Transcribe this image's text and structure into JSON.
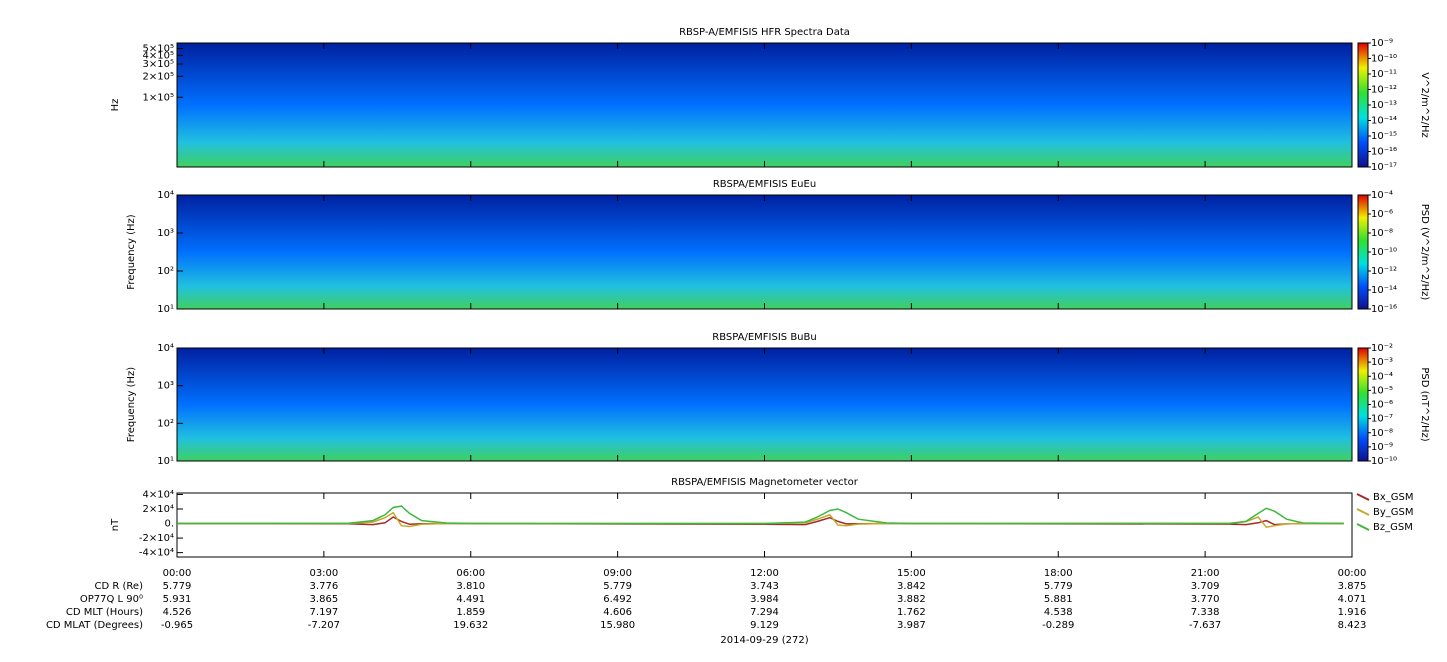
{
  "chart_data": [
    {
      "type": "spectrogram",
      "title": "RBSP-A/EMFISIS  HFR Spectra Data",
      "ylabel": "Hz",
      "log_y": true,
      "ylim": [
        10000,
        600000
      ],
      "yticks": [
        {
          "value": 500000,
          "label": "5×10⁵"
        },
        {
          "value": 400000,
          "label": "4×10⁵"
        },
        {
          "value": 300000,
          "label": "3×10⁵"
        },
        {
          "value": 200000,
          "label": "2×10⁵"
        },
        {
          "value": 100000,
          "label": "1×10⁵"
        }
      ],
      "colorbar_label": "V^2/m^2/Hz",
      "clim": [
        1e-17,
        1e-09
      ],
      "cticks": [
        {
          "value": 1e-09,
          "label": "10⁻⁹"
        },
        {
          "value": 1e-10,
          "label": "10⁻¹⁰"
        },
        {
          "value": 1e-11,
          "label": "10⁻¹¹"
        },
        {
          "value": 1e-12,
          "label": "10⁻¹²"
        },
        {
          "value": 1e-13,
          "label": "10⁻¹³"
        },
        {
          "value": 1e-14,
          "label": "10⁻¹⁴"
        },
        {
          "value": 1e-15,
          "label": "10⁻¹⁵"
        },
        {
          "value": 1e-16,
          "label": "10⁻¹⁶"
        },
        {
          "value": 1e-17,
          "label": "10⁻¹⁷"
        }
      ]
    },
    {
      "type": "spectrogram",
      "title": "RBSPA/EMFISIS  EuEu",
      "ylabel": "Frequency (Hz)",
      "log_y": true,
      "ylim": [
        10,
        10000
      ],
      "yticks": [
        {
          "value": 10000,
          "label": "10⁴"
        },
        {
          "value": 1000,
          "label": "10³"
        },
        {
          "value": 100,
          "label": "10²"
        },
        {
          "value": 10,
          "label": "10¹"
        }
      ],
      "colorbar_label": "PSD (V^2/m^2/Hz)",
      "clim": [
        1e-16,
        0.0001
      ],
      "cticks": [
        {
          "value": 0.0001,
          "label": "10⁻⁴"
        },
        {
          "value": 1e-06,
          "label": "10⁻⁶"
        },
        {
          "value": 1e-08,
          "label": "10⁻⁸"
        },
        {
          "value": 1e-10,
          "label": "10⁻¹⁰"
        },
        {
          "value": 1e-12,
          "label": "10⁻¹²"
        },
        {
          "value": 1e-14,
          "label": "10⁻¹⁴"
        },
        {
          "value": 1e-16,
          "label": "10⁻¹⁶"
        }
      ]
    },
    {
      "type": "spectrogram",
      "title": "RBSPA/EMFISIS  BuBu",
      "ylabel": "Frequency (Hz)",
      "log_y": true,
      "ylim": [
        10,
        10000
      ],
      "yticks": [
        {
          "value": 10000,
          "label": "10⁴"
        },
        {
          "value": 1000,
          "label": "10³"
        },
        {
          "value": 100,
          "label": "10²"
        },
        {
          "value": 10,
          "label": "10¹"
        }
      ],
      "colorbar_label": "PSD (nT^2/Hz)",
      "clim": [
        1e-10,
        0.01
      ],
      "cticks": [
        {
          "value": 0.01,
          "label": "10⁻²"
        },
        {
          "value": 0.001,
          "label": "10⁻³"
        },
        {
          "value": 0.0001,
          "label": "10⁻⁴"
        },
        {
          "value": 1e-05,
          "label": "10⁻⁵"
        },
        {
          "value": 1e-06,
          "label": "10⁻⁶"
        },
        {
          "value": 1e-07,
          "label": "10⁻⁷"
        },
        {
          "value": 1e-08,
          "label": "10⁻⁸"
        },
        {
          "value": 1e-09,
          "label": "10⁻⁹"
        },
        {
          "value": 1e-10,
          "label": "10⁻¹⁰"
        }
      ]
    },
    {
      "type": "line",
      "title": "RBSPA/EMFISIS  Magnetometer vector",
      "ylabel": "nT",
      "ylim": [
        -46000,
        42000
      ],
      "yticks": [
        {
          "value": 40000,
          "label": "4×10⁴"
        },
        {
          "value": 20000,
          "label": "2×10⁴"
        },
        {
          "value": 0,
          "label": "0."
        },
        {
          "value": -20000,
          "label": "-2×10⁴"
        },
        {
          "value": -40000,
          "label": "-4×10⁴"
        }
      ],
      "legend": "right",
      "x": [
        "00:00",
        "03:30",
        "04:00",
        "04:15",
        "04:25",
        "04:35",
        "04:45",
        "05:00",
        "05:30",
        "06:00",
        "12:00",
        "12:50",
        "13:05",
        "13:20",
        "13:30",
        "13:40",
        "13:55",
        "14:30",
        "15:00",
        "21:30",
        "21:50",
        "22:05",
        "22:15",
        "22:25",
        "22:40",
        "23:00",
        "23:50"
      ],
      "series": [
        {
          "name": "Bx_GSM",
          "color": "#a52a2a",
          "values": [
            0,
            -300,
            -1500,
            1000,
            9000,
            3000,
            -1000,
            -300,
            0,
            0,
            -1000,
            -1500,
            3000,
            8000,
            3000,
            -500,
            -200,
            0,
            0,
            -800,
            -1500,
            1000,
            4000,
            -1500,
            -500,
            0,
            0
          ]
        },
        {
          "name": "By_GSM",
          "color": "#c8a82c",
          "values": [
            0,
            200,
            2000,
            8000,
            15000,
            -3000,
            -4000,
            -1000,
            0,
            0,
            0,
            1000,
            6000,
            12000,
            -2000,
            -3000,
            -800,
            0,
            0,
            500,
            2500,
            9000,
            -5000,
            -3000,
            -500,
            0,
            0
          ]
        },
        {
          "name": "Bz_GSM",
          "color": "#3cb93c",
          "values": [
            0,
            500,
            4000,
            12000,
            22000,
            24000,
            14000,
            4000,
            800,
            0,
            0,
            2000,
            9000,
            18000,
            20000,
            15000,
            6000,
            800,
            0,
            0,
            3000,
            14000,
            21000,
            17000,
            6000,
            800,
            0
          ]
        }
      ]
    }
  ],
  "xticks": [
    "00:00",
    "03:00",
    "06:00",
    "09:00",
    "12:00",
    "15:00",
    "18:00",
    "21:00",
    "00:00"
  ],
  "xlabel": "2014-09-29 (272)",
  "ephemeris": [
    {
      "label": "CD R (Re)",
      "values": [
        "5.779",
        "3.776",
        "3.810",
        "5.779",
        "3.743",
        "3.842",
        "5.779",
        "3.709",
        "3.875"
      ]
    },
    {
      "label": "OP77Q L 90⁰",
      "values": [
        "5.931",
        "3.865",
        "4.491",
        "6.492",
        "3.984",
        "3.882",
        "5.881",
        "3.770",
        "4.071"
      ]
    },
    {
      "label": "CD MLT (Hours)",
      "values": [
        "4.526",
        "7.197",
        "1.859",
        "4.606",
        "7.294",
        "1.762",
        "4.538",
        "7.338",
        "1.916"
      ]
    },
    {
      "label": "CD MLAT (Degrees)",
      "values": [
        "-0.965",
        "-7.207",
        "19.632",
        "15.980",
        "9.129",
        "3.987",
        "-0.289",
        "-7.637",
        "8.423"
      ]
    }
  ]
}
